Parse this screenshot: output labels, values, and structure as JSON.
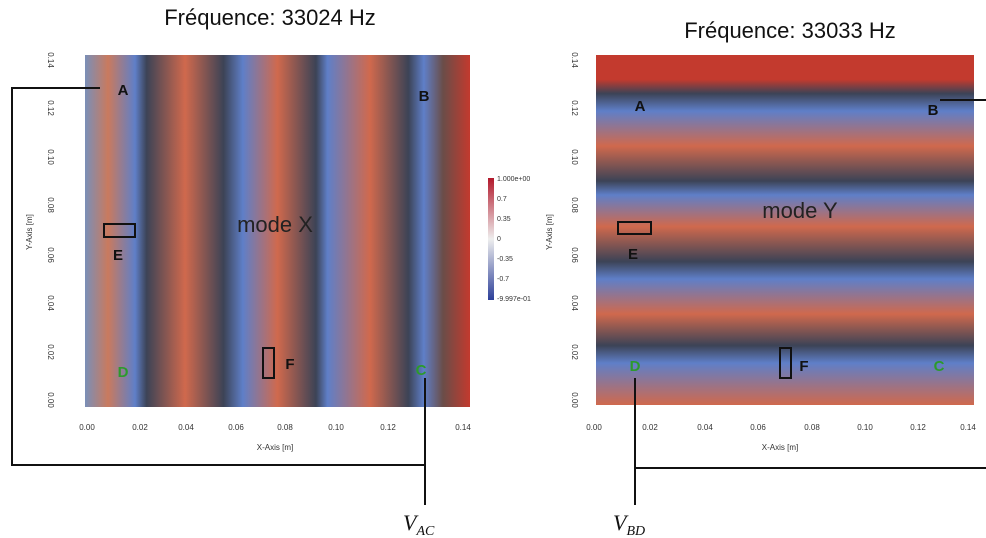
{
  "panels": [
    {
      "title": "Fréquence: 33024 Hz",
      "mode": "mode X",
      "x_axis": "X-Axis [m]",
      "y_axis": "Y-Axis [m]",
      "xticks": [
        "0.00",
        "0.02",
        "0.04",
        "0.06",
        "0.08",
        "0.10",
        "0.12",
        "0.14"
      ],
      "yticks": [
        "0.14",
        "0.12",
        "0.10",
        "0.08",
        "0.06",
        "0.04",
        "0.02",
        "0.00"
      ],
      "points": [
        "A",
        "B",
        "C",
        "D",
        "E",
        "F"
      ],
      "colorbar": [
        "1.000e+00",
        "0.7",
        "0.35",
        "0",
        "-0.35",
        "-0.7",
        "-9.997e-01"
      ],
      "voltage": {
        "symbol": "V",
        "subscript": "AC"
      }
    },
    {
      "title": "Fréquence: 33033 Hz",
      "mode": "mode Y",
      "x_axis": "X-Axis [m]",
      "y_axis": "Y-Axis [m]",
      "xticks": [
        "0.00",
        "0.02",
        "0.04",
        "0.06",
        "0.08",
        "0.10",
        "0.12",
        "0.14"
      ],
      "yticks": [
        "0.14",
        "0.12",
        "0.10",
        "0.08",
        "0.06",
        "0.04",
        "0.02",
        "0.00"
      ],
      "points": [
        "A",
        "B",
        "C",
        "D",
        "E",
        "F"
      ],
      "voltage": {
        "symbol": "V",
        "subscript": "BD"
      }
    }
  ]
}
